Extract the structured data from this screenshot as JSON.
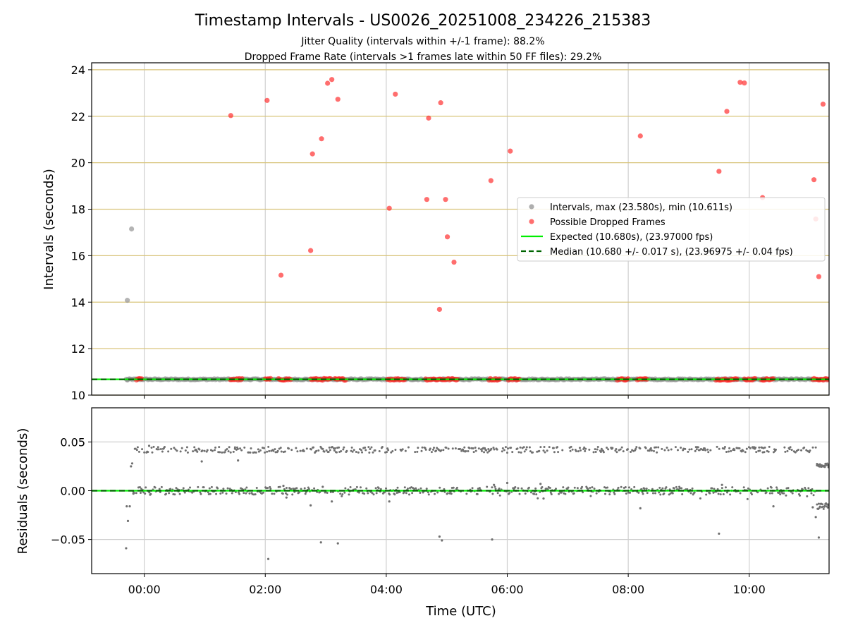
{
  "chart_data": {
    "type": "scatter",
    "title": "Timestamp Intervals - US0026_20251008_234226_215383",
    "subtitles": [
      "Jitter Quality (intervals within +/-1 frame): 88.2%",
      "Dropped Frame Rate (intervals >1 frames late within 50 FF files): 29.2%"
    ],
    "xlabel": "Time (UTC)",
    "x_unit": "hours UTC (relative to 00:00 of 2025-10-09; negative = 2025-10-08)",
    "xlim": [
      -0.87,
      11.32
    ],
    "xticks": [
      "00:00",
      "02:00",
      "04:00",
      "06:00",
      "08:00",
      "10:00"
    ],
    "xtick_values": [
      0,
      2,
      4,
      6,
      8,
      10
    ],
    "grid": true,
    "panels": [
      {
        "name": "intervals",
        "ylabel": "Intervals (seconds)",
        "ylim": [
          10,
          24.3
        ],
        "yticks": [
          "10",
          "12",
          "14",
          "16",
          "18",
          "20",
          "22",
          "24"
        ],
        "ytick_values": [
          10,
          12,
          14,
          16,
          18,
          20,
          22,
          24
        ],
        "expected_line": 10.68,
        "median_line": 10.68,
        "legend": {
          "placement": "center-right",
          "entries": [
            {
              "label": "Intervals, max (23.580s), min (10.611s)",
              "kind": "marker",
              "color": "#8c8c8c"
            },
            {
              "label": "Possible Dropped Frames",
              "kind": "marker",
              "color": "#ff3030"
            },
            {
              "label": "Expected (10.680s), (23.97000 fps)",
              "kind": "line",
              "color": "#00ee00"
            },
            {
              "label": "Median (10.680 +/- 0.017 s), (23.96975 +/- 0.04 fps)",
              "kind": "dashed",
              "color": "#006400"
            }
          ]
        },
        "gray_outliers": [
          [
            -0.28,
            14.08
          ],
          [
            -0.21,
            17.15
          ],
          [
            -0.28,
            10.65
          ]
        ],
        "dropped_points": [
          [
            1.43,
            22.03
          ],
          [
            2.03,
            22.68
          ],
          [
            2.26,
            15.16
          ],
          [
            2.75,
            16.22
          ],
          [
            2.78,
            20.38
          ],
          [
            2.93,
            21.03
          ],
          [
            3.03,
            23.42
          ],
          [
            3.1,
            23.58
          ],
          [
            3.2,
            22.73
          ],
          [
            4.05,
            18.04
          ],
          [
            4.15,
            22.95
          ],
          [
            4.67,
            18.42
          ],
          [
            4.7,
            21.92
          ],
          [
            4.88,
            13.69
          ],
          [
            4.9,
            22.58
          ],
          [
            4.98,
            18.42
          ],
          [
            5.01,
            16.81
          ],
          [
            5.12,
            15.72
          ],
          [
            5.73,
            19.23
          ],
          [
            6.05,
            20.5
          ],
          [
            8.2,
            21.15
          ],
          [
            9.5,
            19.63
          ],
          [
            9.63,
            22.21
          ],
          [
            9.85,
            23.46
          ],
          [
            9.92,
            23.43
          ],
          [
            10.22,
            18.5
          ],
          [
            11.07,
            19.27
          ],
          [
            11.1,
            17.58
          ],
          [
            11.15,
            15.1
          ],
          [
            11.22,
            22.52
          ]
        ],
        "dropped_baseline_ranges": [
          [
            -0.13,
            -0.03
          ],
          [
            1.42,
            1.62
          ],
          [
            2.0,
            2.1
          ],
          [
            2.22,
            2.42
          ],
          [
            2.75,
            3.1
          ],
          [
            3.15,
            3.33
          ],
          [
            4.02,
            4.32
          ],
          [
            4.65,
            5.2
          ],
          [
            5.7,
            5.88
          ],
          [
            6.02,
            6.2
          ],
          [
            7.82,
            8.0
          ],
          [
            8.15,
            8.32
          ],
          [
            9.45,
            9.82
          ],
          [
            9.92,
            10.1
          ],
          [
            10.2,
            10.42
          ],
          [
            11.05,
            11.32
          ]
        ]
      },
      {
        "name": "residuals",
        "ylabel": "Residuals (seconds)",
        "ylim": [
          -0.085,
          0.085
        ],
        "yticks": [
          "0.05",
          "0.00",
          "−0.05"
        ],
        "ytick_values": [
          0.05,
          0,
          -0.05
        ],
        "zero_line": 0,
        "bands": [
          {
            "center": 0.0,
            "spread": 0.004
          },
          {
            "center": 0.042,
            "spread": 0.003
          }
        ],
        "outliers": [
          [
            -0.3,
            -0.059
          ],
          [
            -0.29,
            -0.016
          ],
          [
            -0.27,
            -0.031
          ],
          [
            -0.24,
            -0.016
          ],
          [
            -0.22,
            0.025
          ],
          [
            -0.2,
            0.028
          ],
          [
            -0.18,
            -0.003
          ],
          [
            0.08,
            0.046
          ],
          [
            0.95,
            0.03
          ],
          [
            1.5,
            0.043
          ],
          [
            1.55,
            0.031
          ],
          [
            2.05,
            -0.07
          ],
          [
            2.3,
            0.005
          ],
          [
            2.35,
            -0.007
          ],
          [
            2.75,
            -0.015
          ],
          [
            2.92,
            -0.053
          ],
          [
            2.95,
            0.004
          ],
          [
            3.1,
            -0.011
          ],
          [
            3.2,
            -0.054
          ],
          [
            4.05,
            -0.011
          ],
          [
            4.88,
            -0.047
          ],
          [
            4.92,
            -0.051
          ],
          [
            5.75,
            -0.05
          ],
          [
            5.78,
            0.006
          ],
          [
            6.0,
            0.008
          ],
          [
            6.55,
            0.007
          ],
          [
            6.6,
            -0.008
          ],
          [
            8.2,
            -0.018
          ],
          [
            9.5,
            -0.044
          ],
          [
            9.55,
            0.006
          ],
          [
            10.4,
            -0.016
          ],
          [
            11.05,
            -0.017
          ],
          [
            11.1,
            -0.027
          ],
          [
            11.15,
            -0.048
          ],
          [
            11.12,
            0.026
          ]
        ]
      }
    ]
  }
}
